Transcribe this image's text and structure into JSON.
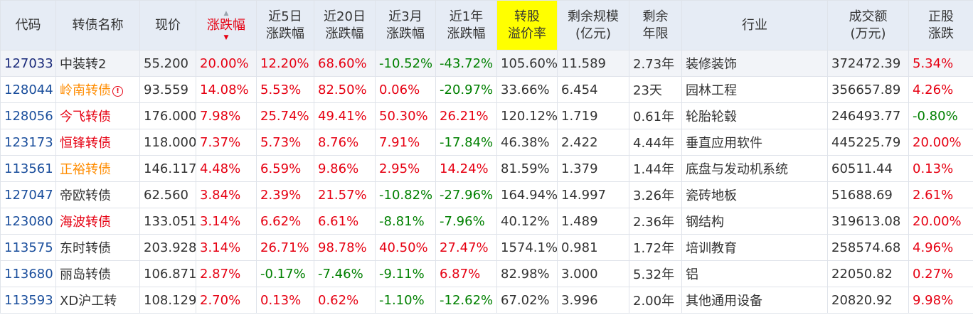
{
  "headers": [
    "代码",
    "转债名称",
    "现价",
    "涨跌幅",
    "近5日\n涨跌幅",
    "近20日\n涨跌幅",
    "近3月\n涨跌幅",
    "近1年\n涨跌幅",
    "转股\n溢价率",
    "剩余规模\n(亿元)",
    "剩余\n年限",
    "行业",
    "成交额\n(万元)",
    "正股\n涨跌"
  ],
  "sorted_column": "涨跌幅",
  "sort_order": "descending",
  "highlight_column": "转股溢价率",
  "colors": {
    "red": "#e60012",
    "green": "#008000",
    "orange": "#ff8c00",
    "header_bg": "#e6ecf5",
    "highlight_bg": "#ffff00"
  },
  "rows": [
    {
      "code": "127033",
      "name": "中装转2",
      "name_color": "dark",
      "warn": false,
      "price": "55.200",
      "chg": "20.00%",
      "chg5": "12.20%",
      "chg20": "68.60%",
      "chg3m": "-10.52%",
      "chg1y": "-43.72%",
      "premium": "105.60%",
      "scale": "11.589",
      "years": "2.73年",
      "industry": "装修装饰",
      "volume": "372472.39",
      "stock_chg": "5.34%"
    },
    {
      "code": "128044",
      "name": "岭南转债",
      "name_color": "orange",
      "warn": true,
      "price": "93.559",
      "chg": "14.08%",
      "chg5": "5.53%",
      "chg20": "82.50%",
      "chg3m": "0.06%",
      "chg1y": "-20.97%",
      "premium": "33.66%",
      "scale": "6.454",
      "years": "23天",
      "industry": "园林工程",
      "volume": "356657.89",
      "stock_chg": "4.26%"
    },
    {
      "code": "128056",
      "name": "今飞转债",
      "name_color": "red",
      "warn": false,
      "price": "176.000",
      "chg": "7.98%",
      "chg5": "25.74%",
      "chg20": "49.41%",
      "chg3m": "50.30%",
      "chg1y": "26.21%",
      "premium": "120.12%",
      "scale": "1.719",
      "years": "0.61年",
      "industry": "轮胎轮毂",
      "volume": "246493.77",
      "stock_chg": "-0.80%"
    },
    {
      "code": "123173",
      "name": "恒锋转债",
      "name_color": "red",
      "warn": false,
      "price": "118.000",
      "chg": "7.37%",
      "chg5": "5.73%",
      "chg20": "8.76%",
      "chg3m": "7.91%",
      "chg1y": "-17.84%",
      "premium": "46.38%",
      "scale": "2.422",
      "years": "4.44年",
      "industry": "垂直应用软件",
      "volume": "445225.79",
      "stock_chg": "20.00%"
    },
    {
      "code": "113561",
      "name": "正裕转债",
      "name_color": "orange",
      "warn": false,
      "price": "146.117",
      "chg": "4.48%",
      "chg5": "6.59%",
      "chg20": "9.86%",
      "chg3m": "2.95%",
      "chg1y": "14.24%",
      "premium": "81.59%",
      "scale": "1.379",
      "years": "1.44年",
      "industry": "底盘与发动机系统",
      "volume": "60511.44",
      "stock_chg": "0.13%"
    },
    {
      "code": "127047",
      "name": "帝欧转债",
      "name_color": "dark",
      "warn": false,
      "price": "62.560",
      "chg": "3.84%",
      "chg5": "2.39%",
      "chg20": "21.57%",
      "chg3m": "-10.82%",
      "chg1y": "-27.96%",
      "premium": "164.94%",
      "scale": "14.997",
      "years": "3.26年",
      "industry": "瓷砖地板",
      "volume": "51688.69",
      "stock_chg": "2.61%"
    },
    {
      "code": "123080",
      "name": "海波转债",
      "name_color": "red",
      "warn": false,
      "price": "133.051",
      "chg": "3.14%",
      "chg5": "6.62%",
      "chg20": "6.61%",
      "chg3m": "-8.81%",
      "chg1y": "-7.96%",
      "premium": "40.12%",
      "scale": "1.489",
      "years": "2.36年",
      "industry": "钢结构",
      "volume": "319613.08",
      "stock_chg": "20.00%"
    },
    {
      "code": "113575",
      "name": "东时转债",
      "name_color": "dark",
      "warn": false,
      "price": "203.928",
      "chg": "3.14%",
      "chg5": "26.71%",
      "chg20": "98.78%",
      "chg3m": "40.50%",
      "chg1y": "27.47%",
      "premium": "1574.1%",
      "scale": "0.981",
      "years": "1.72年",
      "industry": "培训教育",
      "volume": "258574.68",
      "stock_chg": "4.96%"
    },
    {
      "code": "113680",
      "name": "丽岛转债",
      "name_color": "dark",
      "warn": false,
      "price": "106.871",
      "chg": "2.87%",
      "chg5": "-0.17%",
      "chg20": "-7.46%",
      "chg3m": "-9.11%",
      "chg1y": "6.87%",
      "premium": "82.98%",
      "scale": "3.000",
      "years": "5.32年",
      "industry": "铝",
      "volume": "22050.82",
      "stock_chg": "0.27%"
    },
    {
      "code": "113593",
      "name": "XD沪工转",
      "name_color": "dark",
      "warn": false,
      "price": "108.129",
      "chg": "2.70%",
      "chg5": "0.13%",
      "chg20": "0.62%",
      "chg3m": "-1.10%",
      "chg1y": "-12.62%",
      "premium": "67.02%",
      "scale": "3.996",
      "years": "2.00年",
      "industry": "其他通用设备",
      "volume": "20820.92",
      "stock_chg": "9.98%"
    }
  ]
}
